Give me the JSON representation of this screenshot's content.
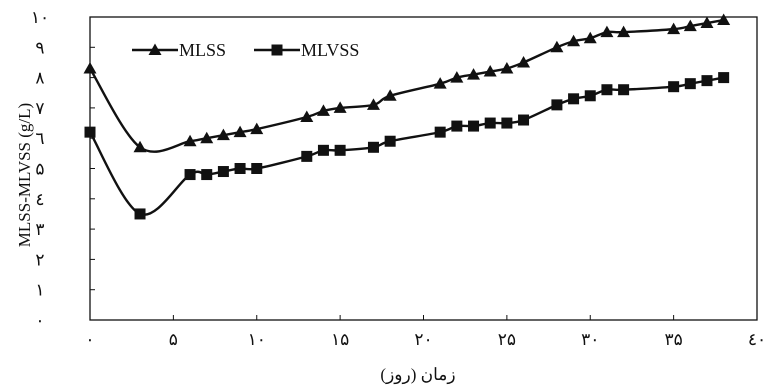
{
  "chart_data": {
    "type": "line",
    "xlabel": "زمان (روز)",
    "ylabel": "MLSS-MLVSS (g/L)",
    "xlim": [
      0,
      40
    ],
    "ylim": [
      0,
      10
    ],
    "x_ticks": [
      0,
      5,
      10,
      15,
      20,
      25,
      30,
      35,
      40
    ],
    "y_ticks": [
      0,
      1,
      2,
      3,
      4,
      5,
      6,
      7,
      8,
      9,
      10
    ],
    "x_tick_labels": [
      "۰",
      "۵",
      "۱۰",
      "۱۵",
      "۲۰",
      "۲۵",
      "۳۰",
      "۳۵",
      "٤۰"
    ],
    "y_tick_labels": [
      "۰",
      "۱",
      "۲",
      "۳",
      "٤",
      "۵",
      "٦",
      "۷",
      "۸",
      "۹",
      "۱۰"
    ],
    "grid": false,
    "legend_position": "top-left",
    "series": [
      {
        "name": "MLSS",
        "marker": "triangle",
        "x": [
          0,
          3,
          6,
          7,
          8,
          9,
          10,
          13,
          14,
          15,
          17,
          18,
          21,
          22,
          23,
          24,
          25,
          26,
          28,
          29,
          30,
          31,
          32,
          35,
          36,
          37,
          38
        ],
        "y": [
          8.3,
          5.7,
          5.9,
          6.0,
          6.1,
          6.2,
          6.3,
          6.7,
          6.9,
          7.0,
          7.1,
          7.4,
          7.8,
          8.0,
          8.1,
          8.2,
          8.3,
          8.5,
          9.0,
          9.2,
          9.3,
          9.5,
          9.5,
          9.6,
          9.7,
          9.8,
          9.9
        ]
      },
      {
        "name": "MLVSS",
        "marker": "square",
        "x": [
          0,
          3,
          6,
          7,
          8,
          9,
          10,
          13,
          14,
          15,
          17,
          18,
          21,
          22,
          23,
          24,
          25,
          26,
          28,
          29,
          30,
          31,
          32,
          35,
          36,
          37,
          38
        ],
        "y": [
          6.2,
          3.5,
          4.8,
          4.8,
          4.9,
          5.0,
          5.0,
          5.4,
          5.6,
          5.6,
          5.7,
          5.9,
          6.2,
          6.4,
          6.4,
          6.5,
          6.5,
          6.6,
          7.1,
          7.3,
          7.4,
          7.6,
          7.6,
          7.7,
          7.8,
          7.9,
          8.0
        ]
      }
    ]
  }
}
